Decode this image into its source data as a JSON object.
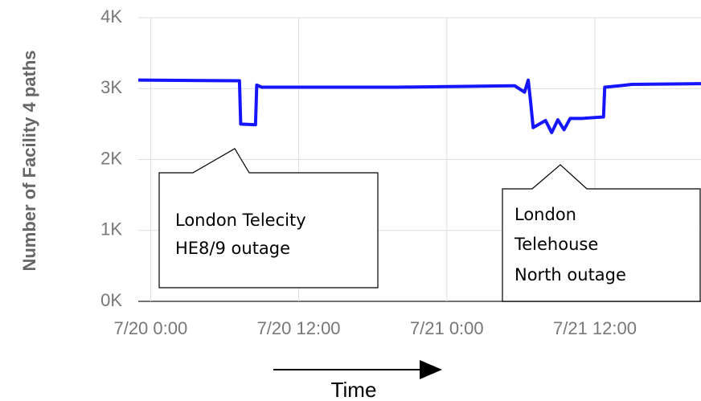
{
  "chart_data": {
    "type": "line",
    "y_label": "Number of Facility 4 paths",
    "x_label": "Time",
    "x": [
      -1,
      7.2,
      7.3,
      8.5,
      8.6,
      9,
      20,
      29.5,
      30.3,
      30.6,
      30.8,
      31,
      32,
      32.5,
      33,
      33.5,
      34,
      35,
      36.7,
      36.8,
      38,
      39,
      44.6
    ],
    "series": [
      {
        "name": "paths",
        "color": "#1515ff",
        "values": [
          3120,
          3110,
          2500,
          2490,
          3050,
          3020,
          3020,
          3040,
          2950,
          3120,
          2800,
          2450,
          2550,
          2380,
          2560,
          2420,
          2580,
          2580,
          2600,
          3020,
          3040,
          3060,
          3070
        ]
      }
    ],
    "xlim": [
      -1,
      44.6
    ],
    "xticks": [
      {
        "value": 0,
        "label": "7/20 0:00"
      },
      {
        "value": 12,
        "label": "7/20 12:00"
      },
      {
        "value": 24,
        "label": "7/21 0:00"
      },
      {
        "value": 36,
        "label": "7/21 12:00"
      }
    ],
    "ylim": [
      0,
      4000
    ],
    "yticks": [
      {
        "value": 0,
        "label": "0K"
      },
      {
        "value": 1000,
        "label": "1K"
      },
      {
        "value": 2000,
        "label": "2K"
      },
      {
        "value": 3000,
        "label": "3K"
      },
      {
        "value": 4000,
        "label": "4K"
      }
    ],
    "grid": true,
    "annotations": [
      {
        "lines": [
          "London Telecity",
          "HE8/9 outage"
        ]
      },
      {
        "lines": [
          "London",
          "Telehouse",
          "North outage"
        ]
      }
    ]
  }
}
